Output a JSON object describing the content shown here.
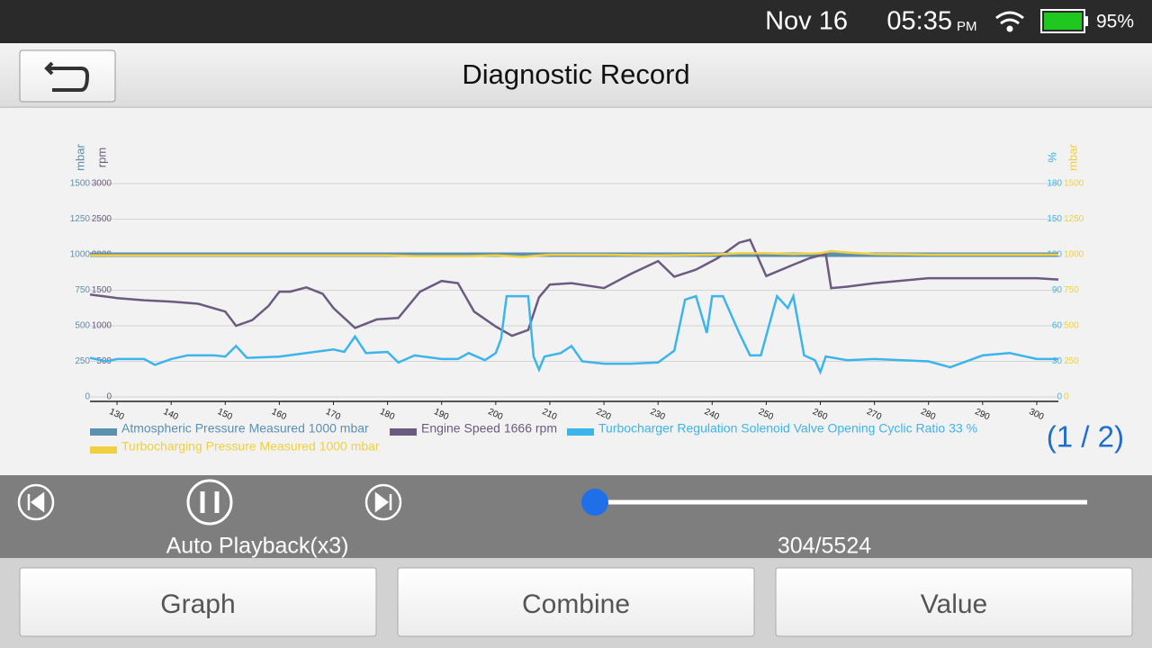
{
  "status": {
    "date": "Nov 16",
    "time": "05:35",
    "ampm": "PM",
    "battery": "95%"
  },
  "header": {
    "title": "Diagnostic Record"
  },
  "chart_data": {
    "type": "line",
    "xlim": [
      125,
      304
    ],
    "xticks": [
      130,
      140,
      150,
      160,
      170,
      180,
      190,
      200,
      210,
      220,
      230,
      240,
      250,
      260,
      270,
      280,
      290,
      300
    ],
    "ylabel": "mbar",
    "ylim": [
      0,
      1500
    ],
    "yticks": [
      0,
      250,
      500,
      750,
      1000,
      1250,
      1500
    ],
    "ycolor": "#5b8fb0",
    "y2label": "rpm",
    "y2lim": [
      0,
      3000
    ],
    "y2ticks": [
      0,
      500,
      1000,
      1500,
      2000,
      2500,
      3000
    ],
    "y2color": "#6b5b80",
    "y3label": "%",
    "y3lim": [
      0,
      180
    ],
    "y3ticks": [
      0,
      30,
      60,
      90,
      120,
      150,
      180
    ],
    "y3color": "#3cb4ec",
    "y4label": "mbar",
    "y4lim": [
      0,
      1500
    ],
    "y4ticks": [
      0,
      250,
      500,
      750,
      1000,
      1250,
      1500
    ],
    "y4color": "#f0d040",
    "grid": true,
    "series": [
      {
        "name": "Atmospheric Pressure Measured 1000 mbar",
        "color": "#5b8fb0",
        "axis": "y",
        "x": [
          125,
          304
        ],
        "values": [
          1000,
          1000
        ]
      },
      {
        "name": "Engine Speed 1666 rpm",
        "color": "#6b5b80",
        "axis": "y2",
        "x": [
          125,
          130,
          135,
          140,
          145,
          150,
          152,
          155,
          158,
          160,
          162,
          165,
          168,
          170,
          174,
          178,
          182,
          186,
          190,
          193,
          196,
          200,
          203,
          206,
          208,
          210,
          214,
          220,
          225,
          230,
          233,
          237,
          241,
          245,
          247,
          250,
          255,
          258,
          261,
          262,
          265,
          270,
          280,
          290,
          300,
          304
        ],
        "values": [
          1440,
          1390,
          1360,
          1340,
          1310,
          1200,
          1000,
          1080,
          1280,
          1480,
          1480,
          1540,
          1450,
          1250,
          970,
          1090,
          1110,
          1480,
          1630,
          1600,
          1200,
          990,
          860,
          940,
          1400,
          1580,
          1600,
          1530,
          1730,
          1910,
          1690,
          1790,
          1950,
          2170,
          2210,
          1700,
          1860,
          1950,
          2010,
          1530,
          1550,
          1600,
          1670,
          1670,
          1670,
          1650
        ]
      },
      {
        "name": "Turbocharger Regulation Solenoid Valve Opening Cyclic Ratio 33 %",
        "color": "#3cb4ec",
        "axis": "y3",
        "x": [
          125,
          128,
          130,
          135,
          137,
          140,
          143,
          148,
          150,
          152,
          154,
          160,
          170,
          172,
          174,
          176,
          180,
          182,
          185,
          190,
          193,
          195,
          198,
          200,
          201,
          202,
          206,
          207,
          208,
          209,
          212,
          214,
          216,
          220,
          225,
          230,
          233,
          235,
          237,
          239,
          240,
          242,
          245,
          247,
          249,
          252,
          254,
          255,
          257,
          259,
          260,
          261,
          265,
          270,
          280,
          284,
          290,
          295,
          300,
          304
        ],
        "values": [
          33,
          30,
          32,
          32,
          27,
          32,
          35,
          35,
          34,
          43,
          33,
          34,
          40,
          38,
          51,
          37,
          38,
          29,
          35,
          32,
          32,
          37,
          31,
          37,
          49,
          85,
          85,
          34,
          23,
          34,
          37,
          43,
          30,
          28,
          28,
          29,
          39,
          82,
          85,
          54,
          85,
          85,
          54,
          35,
          35,
          85,
          75,
          85,
          35,
          31,
          21,
          34,
          31,
          32,
          30,
          25,
          35,
          37,
          32,
          32
        ]
      },
      {
        "name": "Turbocharging Pressure Measured 1000 mbar",
        "color": "#f0d040",
        "axis": "y4",
        "x": [
          125,
          140,
          160,
          180,
          185,
          190,
          195,
          200,
          205,
          210,
          220,
          230,
          240,
          245,
          250,
          255,
          260,
          262,
          265,
          270,
          280,
          290,
          300,
          304
        ],
        "values": [
          995,
          995,
          995,
          995,
          990,
          990,
          990,
          995,
          985,
          1000,
          1000,
          995,
          1000,
          1010,
          1010,
          1005,
          1010,
          1025,
          1015,
          1005,
          1000,
          1000,
          1000,
          1000
        ]
      }
    ]
  },
  "pager": "(1 / 2)",
  "controls": {
    "mode": "Auto Playback(x3)",
    "position": "304/5524"
  },
  "buttons": [
    "Graph",
    "Combine",
    "Value"
  ]
}
